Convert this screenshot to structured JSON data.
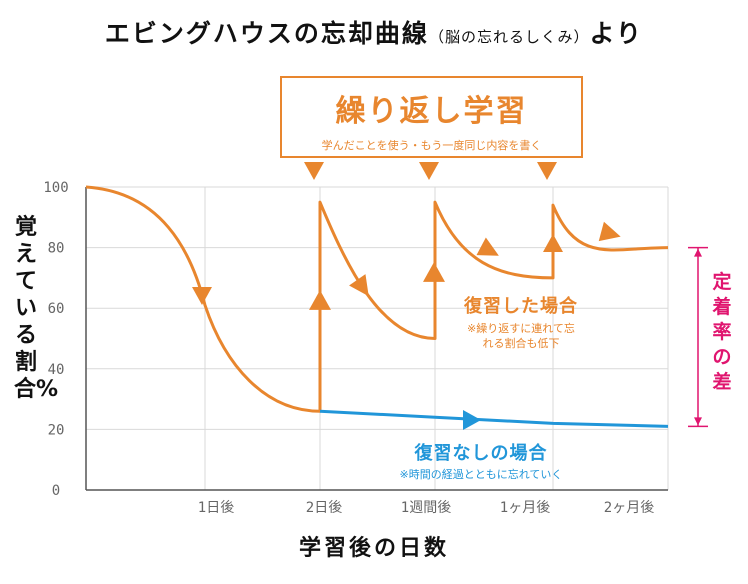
{
  "title": {
    "main": "エビングハウスの忘却曲線",
    "sub": "（脳の忘れるしくみ）",
    "tail": "より"
  },
  "callout": {
    "title": "繰り返し学習",
    "subtitle": "学んだことを使う・もう一度同じ内容を書く"
  },
  "annotations": {
    "review": {
      "title": "復習した場合",
      "note": "※繰り返すに連れて忘れる割合も低下"
    },
    "no_review": {
      "title": "復習なしの場合",
      "note": "※時間の経過とともに忘れていく"
    },
    "retention_gap": "定着率の差"
  },
  "colors": {
    "review": "#e8862e",
    "no_review": "#2196d9",
    "gap": "#e0156f",
    "grid": "#d9d9d9"
  },
  "chart_data": {
    "type": "line",
    "title": "エビングハウスの忘却曲線",
    "ylabel": "覚えている割合%",
    "xlabel": "学習後の日数",
    "ylim": [
      0,
      100
    ],
    "yticks": [
      0,
      20,
      40,
      60,
      80,
      100
    ],
    "xticks": [
      "1日後",
      "2日後",
      "1週間後",
      "1ヶ月後",
      "2ヶ月後"
    ],
    "grid": true,
    "series": [
      {
        "name": "復習した場合",
        "points": [
          [
            "0",
            100
          ],
          [
            "1日後",
            61
          ],
          [
            "2日後",
            26
          ],
          [
            "2日後",
            95
          ],
          [
            "1週間後",
            50
          ],
          [
            "1週間後",
            95
          ],
          [
            "1ヶ月後",
            70
          ],
          [
            "1ヶ月後",
            94
          ],
          [
            "2ヶ月後",
            80
          ]
        ]
      },
      {
        "name": "復習なしの場合",
        "points": [
          [
            "2日後",
            26
          ],
          [
            "1週間後",
            24
          ],
          [
            "1ヶ月後",
            22
          ],
          [
            "2ヶ月後",
            21
          ]
        ]
      }
    ],
    "review_markers": [
      "2日後",
      "1週間後",
      "1ヶ月後"
    ]
  }
}
